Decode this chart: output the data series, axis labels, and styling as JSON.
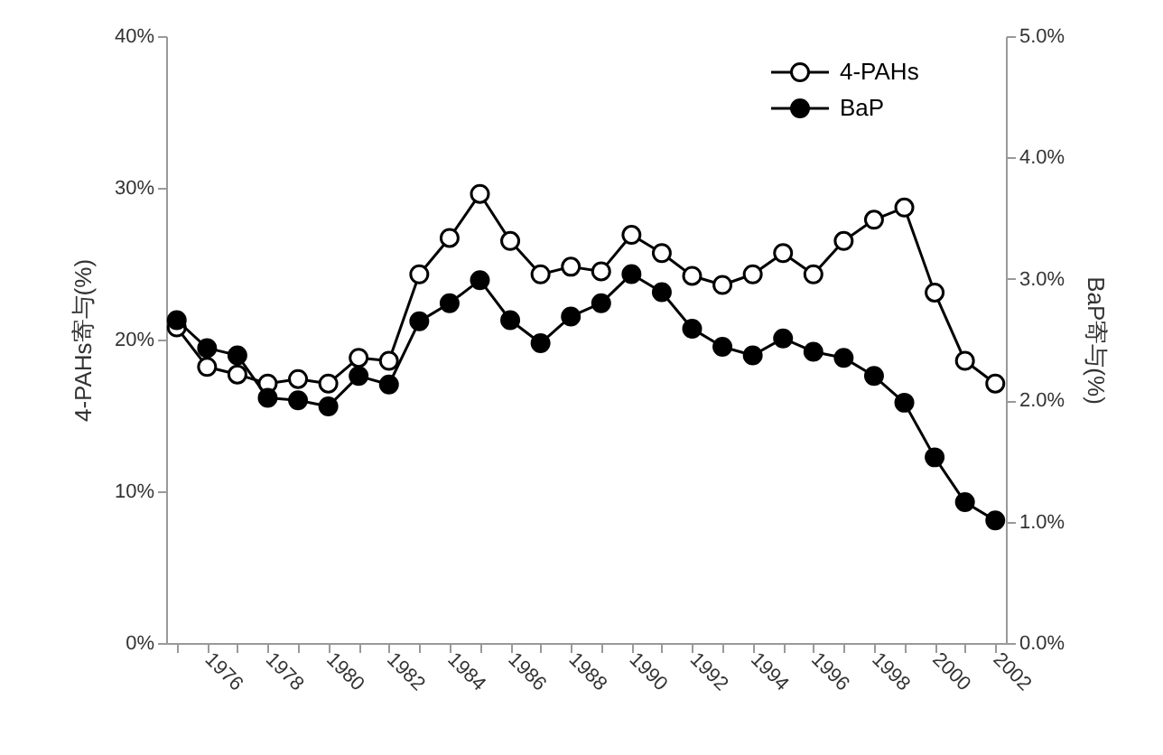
{
  "chart_data": {
    "type": "line",
    "ylabel": "4-PAHs寄与(%)",
    "y2label": "BaP寄与(%)",
    "categories": [
      null,
      "1976",
      null,
      "1978",
      null,
      "1980",
      null,
      "1982",
      null,
      "1984",
      null,
      "1986",
      null,
      "1988",
      null,
      "1990",
      null,
      "1992",
      null,
      "1994",
      null,
      "1996",
      null,
      "1998",
      null,
      "2000",
      null,
      "2002"
    ],
    "series": [
      {
        "name": "4-PAHs",
        "color": "#ffffff",
        "values": [
          20.8,
          18.2,
          17.7,
          17.1,
          17.4,
          17.1,
          18.8,
          18.6,
          24.3,
          26.7,
          29.6,
          26.5,
          24.3,
          24.8,
          24.5,
          26.9,
          25.7,
          24.2,
          23.6,
          24.3,
          25.7,
          24.3,
          26.5,
          27.9,
          28.7,
          23.1,
          18.6,
          17.1
        ]
      },
      {
        "name": "BaP",
        "color": "#000000",
        "axis": "y2",
        "values": [
          2.66,
          2.43,
          2.37,
          2.02,
          2.0,
          1.95,
          2.2,
          2.13,
          2.65,
          2.8,
          2.99,
          2.66,
          2.47,
          2.69,
          2.8,
          3.04,
          2.89,
          2.59,
          2.44,
          2.37,
          2.51,
          2.4,
          2.35,
          2.2,
          1.98,
          1.53,
          1.16,
          1.01
        ]
      }
    ],
    "ylim": [
      0,
      40
    ],
    "yticks": [
      {
        "value": 0,
        "label": "0%"
      },
      {
        "value": 10,
        "label": "10%"
      },
      {
        "value": 20,
        "label": "20%"
      },
      {
        "value": 30,
        "label": "30%"
      },
      {
        "value": 40,
        "label": "40%"
      }
    ],
    "y2lim": [
      0,
      5
    ],
    "y2ticks": [
      {
        "value": 0,
        "label": "0.0%"
      },
      {
        "value": 1,
        "label": "1.0%"
      },
      {
        "value": 2,
        "label": "2.0%"
      },
      {
        "value": 3,
        "label": "3.0%"
      },
      {
        "value": 4,
        "label": "4.0%"
      },
      {
        "value": 5,
        "label": "5.0%"
      }
    ],
    "marker": "circle",
    "line_style": "solid",
    "legend": "top right"
  }
}
